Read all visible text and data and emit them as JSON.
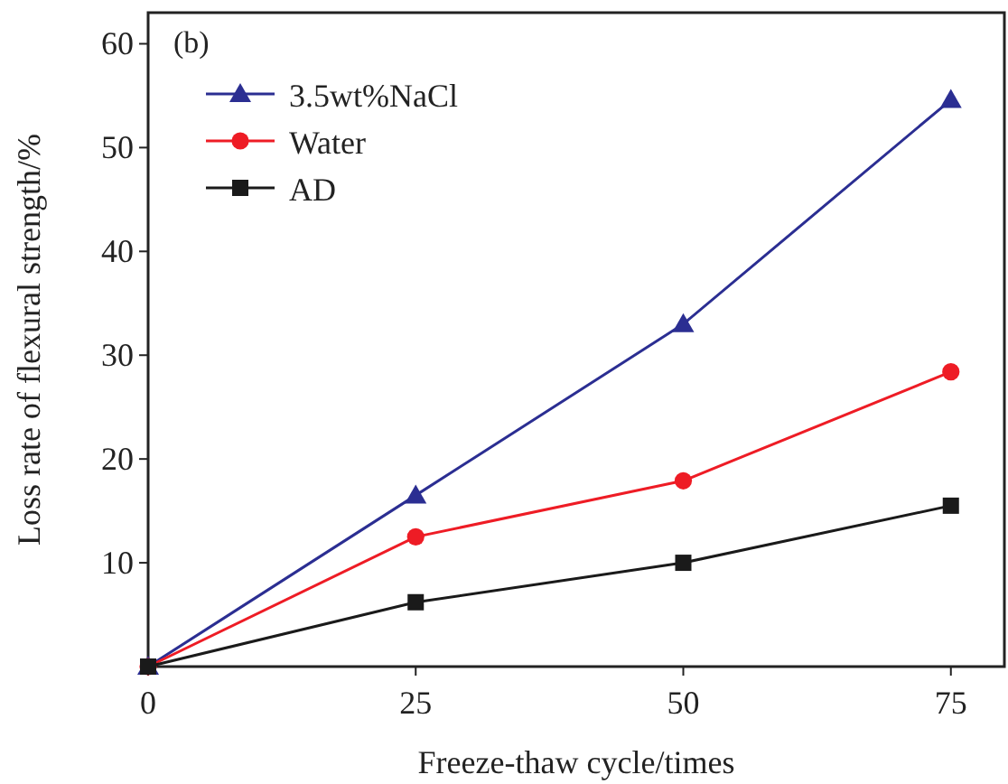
{
  "chart_data": {
    "type": "line",
    "xlabel": "Freeze-thaw cycle/times",
    "ylabel": "Loss rate of flexural strength/%",
    "annotations": [
      "(b)"
    ],
    "x": [
      0,
      25,
      50,
      75
    ],
    "series": [
      {
        "name": "3.5wt%NaCl",
        "color": "#2b2e92",
        "values": [
          0,
          16.5,
          33.0,
          54.6
        ],
        "marker": "triangle"
      },
      {
        "name": "Water",
        "color": "#ee1c25",
        "values": [
          0,
          12.5,
          17.9,
          28.4
        ],
        "marker": "circle"
      },
      {
        "name": "AD",
        "color": "#1a1a1a",
        "values": [
          0,
          6.2,
          10.0,
          15.5
        ],
        "marker": "square"
      }
    ],
    "xlim": [
      0,
      80
    ],
    "ylim": [
      0,
      63
    ],
    "xticks": [
      0,
      25,
      50,
      75
    ],
    "yticks": [
      10,
      20,
      30,
      40,
      50,
      60
    ],
    "grid": false,
    "legend": "top left",
    "line_style": "solid"
  }
}
